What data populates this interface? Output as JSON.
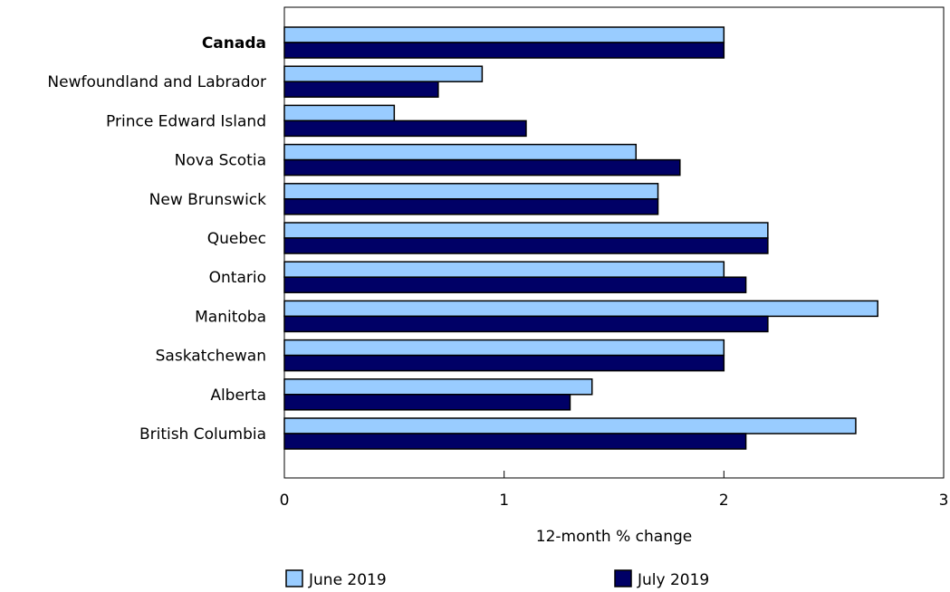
{
  "chart_data": {
    "type": "bar",
    "orientation": "horizontal",
    "categories": [
      "Canada",
      "Newfoundland and Labrador",
      "Prince Edward Island",
      "Nova Scotia",
      "New Brunswick",
      "Quebec",
      "Ontario",
      "Manitoba",
      "Saskatchewan",
      "Alberta",
      "British Columbia"
    ],
    "emphasized_category": "Canada",
    "series": [
      {
        "name": "June 2019",
        "color": "#99ccff",
        "values": [
          2.0,
          0.9,
          0.5,
          1.6,
          1.7,
          2.2,
          2.0,
          2.7,
          2.0,
          1.4,
          2.6
        ]
      },
      {
        "name": "July 2019",
        "color": "#000066",
        "values": [
          2.0,
          0.7,
          1.1,
          1.8,
          1.7,
          2.2,
          2.1,
          2.2,
          2.0,
          1.3,
          2.1
        ]
      }
    ],
    "xlabel": "12-month % change",
    "ylabel": "",
    "xlim": [
      0,
      3
    ],
    "xticks": [
      0,
      1,
      2,
      3
    ],
    "xtick_labels": [
      "0",
      "1",
      "2",
      "3"
    ],
    "grid": false,
    "legend_position": "bottom"
  }
}
